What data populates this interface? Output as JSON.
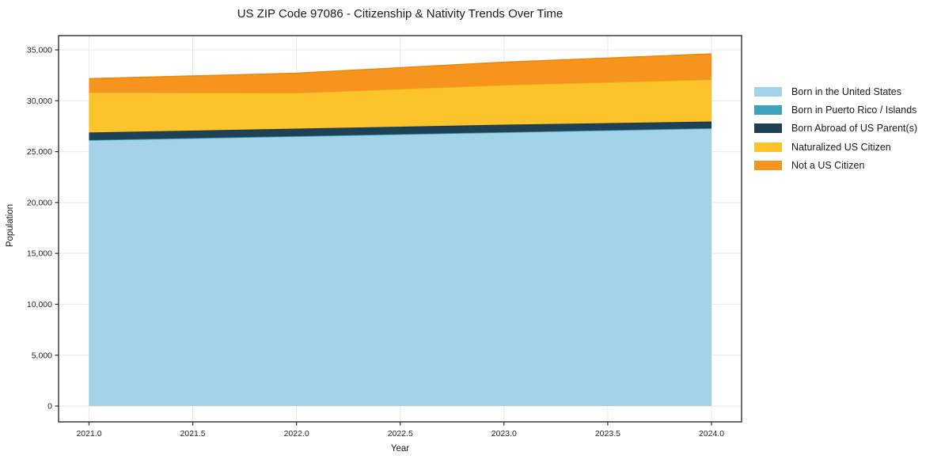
{
  "chart_data": {
    "type": "area",
    "stacked": true,
    "title": "US ZIP Code 97086 - Citizenship & Nativity Trends Over Time",
    "xlabel": "Year",
    "ylabel": "Population",
    "x": [
      2021,
      2022,
      2023,
      2024
    ],
    "series": [
      {
        "name": "Born in the United States",
        "color": "#a3d3e8",
        "edge_color": "#8cc3dc",
        "values": [
          26100,
          26480,
          26870,
          27260
        ]
      },
      {
        "name": "Born in Puerto Rico / Islands",
        "color": "#3ba3bf",
        "edge_color": "#3295b1",
        "values": [
          40,
          40,
          40,
          40
        ]
      },
      {
        "name": "Born Abroad of US Parent(s)",
        "color": "#1f4156",
        "edge_color": "#18374a",
        "values": [
          740,
          740,
          740,
          660
        ]
      },
      {
        "name": "Naturalized US Citizen",
        "color": "#fcc32a",
        "edge_color": "#edb117",
        "values": [
          3930,
          3500,
          3890,
          4120
        ]
      },
      {
        "name": "Not a US Citizen",
        "color": "#f7941d",
        "edge_color": "#e88612",
        "values": [
          1360,
          1950,
          2250,
          2530
        ]
      }
    ],
    "x_ticks": [
      2021.0,
      2021.5,
      2022.0,
      2022.5,
      2023.0,
      2023.5,
      2024.0
    ],
    "x_tick_labels": [
      "2021.0",
      "2021.5",
      "2022.0",
      "2022.5",
      "2023.0",
      "2023.5",
      "2024.0"
    ],
    "y_ticks": [
      0,
      5000,
      10000,
      15000,
      20000,
      25000,
      30000,
      35000
    ],
    "y_tick_labels": [
      "0",
      "5,000",
      "10,000",
      "15,000",
      "20,000",
      "25,000",
      "30,000",
      "35,000"
    ],
    "ylim": [
      0,
      35000
    ],
    "xlim": [
      2021,
      2024
    ],
    "grid": true,
    "legend_position": "right"
  }
}
